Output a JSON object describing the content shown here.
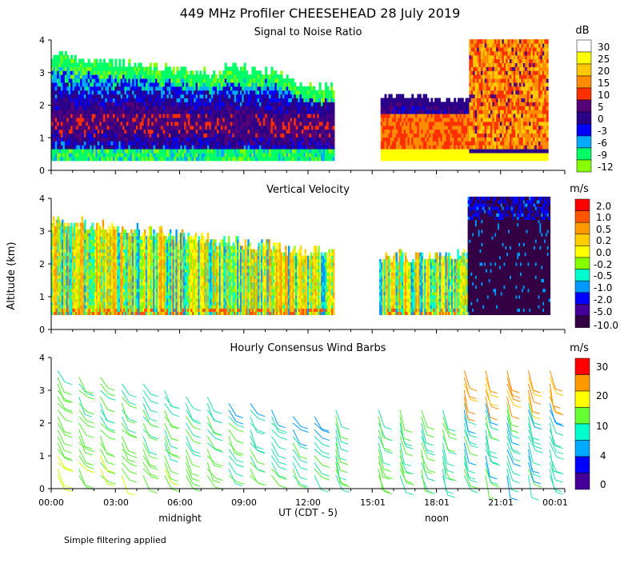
{
  "header": {
    "title": "449 MHz Profiler CHEESEHEAD 28 July 2019"
  },
  "y_axis_label": "Altitude (km)",
  "x_axis": {
    "label": "UT  (CDT - 5)",
    "ticks": [
      "00:00",
      "03:00",
      "06:00",
      "09:00",
      "12:00",
      "15:01",
      "18:01",
      "21:01",
      "00:01"
    ],
    "local_labels": [
      "midnight",
      "noon"
    ]
  },
  "footer": {
    "note": "Simple filtering applied"
  },
  "chart_data": [
    {
      "type": "heatmap",
      "title": "Signal to Noise Ratio",
      "xlabel": "UT  (CDT - 5)",
      "ylabel": "Altitude (km)",
      "xlim": [
        0,
        24
      ],
      "ylim": [
        0,
        4
      ],
      "yticks": [
        "0",
        "1",
        "2",
        "3",
        "4"
      ],
      "gap_hours": [
        13.2,
        15.3
      ],
      "colorbar": {
        "unit": "dB",
        "levels": [
          "30",
          "25",
          "20",
          "15",
          "10",
          "5",
          "0",
          "-3",
          "-6",
          "-9",
          "-12"
        ],
        "colors": [
          "#ffffff",
          "#ffff00",
          "#ffc800",
          "#ff8c00",
          "#ff3000",
          "#550077",
          "#2a0088",
          "#0000ff",
          "#00aaff",
          "#00ff66",
          "#88ff00"
        ]
      }
    },
    {
      "type": "heatmap",
      "title": "Vertical Velocity",
      "xlabel": "UT  (CDT - 5)",
      "ylabel": "Altitude (km)",
      "xlim": [
        0,
        24
      ],
      "ylim": [
        0,
        4
      ],
      "yticks": [
        "0",
        "1",
        "2",
        "3",
        "4"
      ],
      "colorbar": {
        "unit": "m/s",
        "levels": [
          "2.0",
          "1.0",
          "0.5",
          "0.2",
          "0.0",
          "-0.2",
          "-0.5",
          "-1.0",
          "-2.0",
          "-5.0",
          "-10.0"
        ],
        "colors": [
          "#ff0000",
          "#ff5500",
          "#ff9900",
          "#ffcc00",
          "#ffff00",
          "#88ff00",
          "#00ffcc",
          "#0099ff",
          "#0000ff",
          "#440099",
          "#330044"
        ]
      }
    },
    {
      "type": "scatter",
      "title": "Hourly Consensus Wind Barbs",
      "xlabel": "UT  (CDT - 5)",
      "ylabel": "Altitude (km)",
      "xlim": [
        0,
        24
      ],
      "ylim": [
        0,
        4
      ],
      "yticks": [
        "0",
        "1",
        "2",
        "3",
        "4"
      ],
      "colorbar": {
        "unit": "m/s",
        "levels": [
          "30",
          "20",
          "10",
          "4",
          "0"
        ],
        "colors": [
          "#ff0000",
          "#ff9900",
          "#ffff00",
          "#66ff33",
          "#00ffcc",
          "#00aaff",
          "#0000ff",
          "#440099"
        ]
      }
    }
  ]
}
